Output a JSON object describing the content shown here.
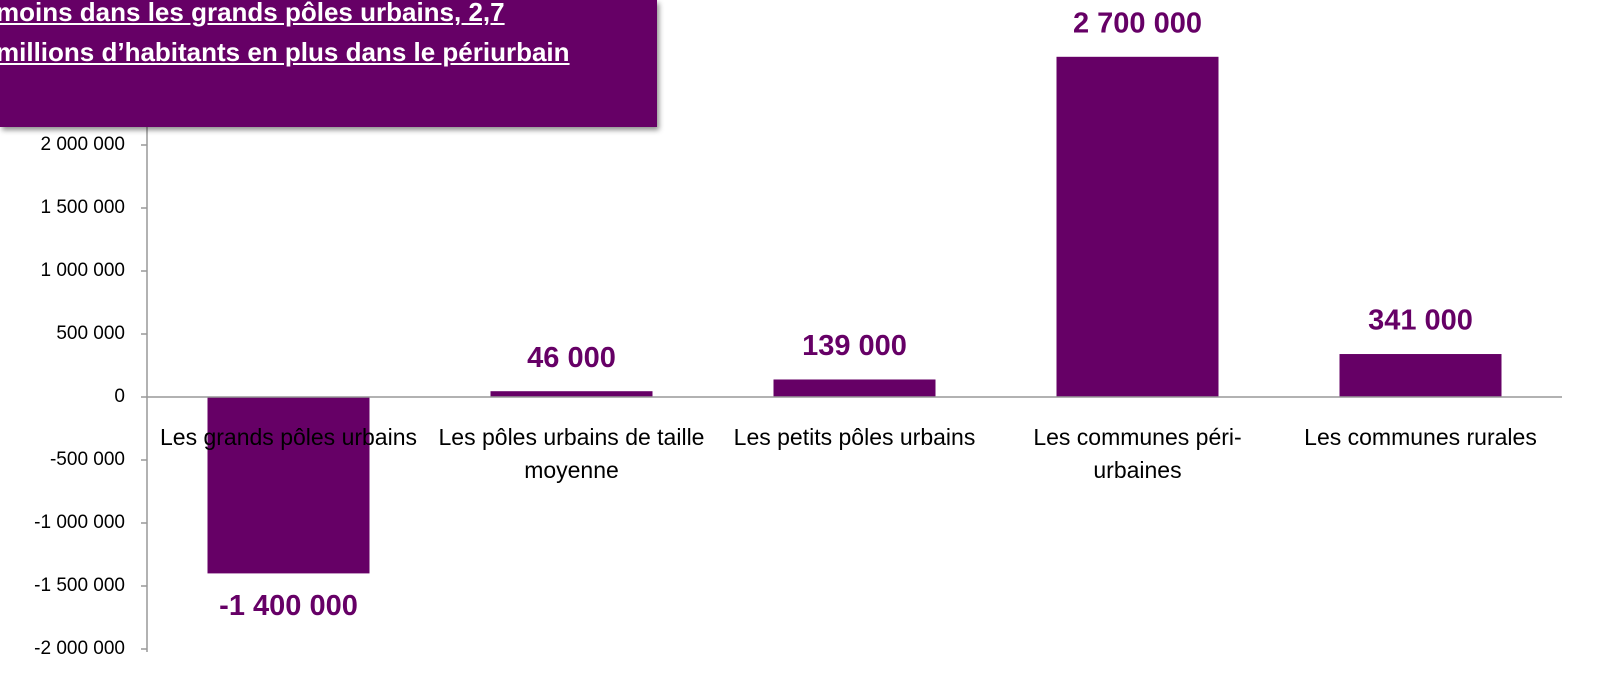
{
  "chart_data": {
    "type": "bar",
    "title": "moins dans les grands pôles urbains, 2,7 millions d’habitants en plus dans le périurbain",
    "categories": [
      "Les grands pôles urbains",
      "Les pôles urbains de taille moyenne",
      "Les petits pôles urbains",
      "Les communes péri-urbaines",
      "Les communes rurales"
    ],
    "values": [
      -1400000,
      46000,
      139000,
      2700000,
      341000
    ],
    "value_labels": [
      "-1 400 000",
      "46 000",
      "139 000",
      "2 700 000",
      "341 000"
    ],
    "color": "#660066",
    "ylim": [
      -2000000,
      3000000
    ],
    "yticks": [
      {
        "value": -2000000,
        "label": "-2 000 000"
      },
      {
        "value": -1500000,
        "label": "-1 500 000"
      },
      {
        "value": -1000000,
        "label": "-1 000 000"
      },
      {
        "value": -500000,
        "label": "-500 000"
      },
      0,
      {
        "value": 500000,
        "label": "500 000"
      },
      {
        "value": 1000000,
        "label": "1 000 000"
      },
      {
        "value": 1500000,
        "label": "1 500 000"
      },
      {
        "value": 2000000,
        "label": "2 000 000"
      }
    ],
    "grid": false
  }
}
